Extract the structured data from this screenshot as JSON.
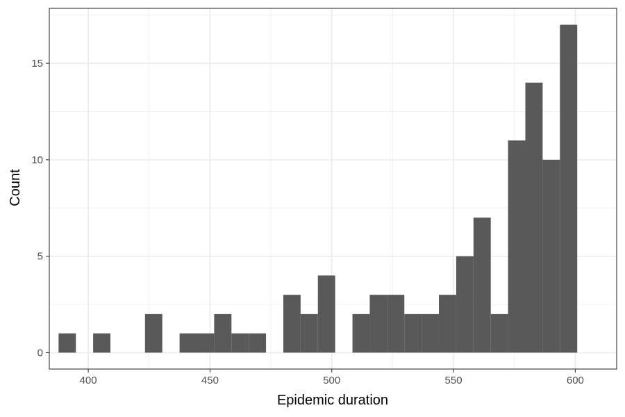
{
  "chart_data": {
    "type": "histogram",
    "xlabel": "Epidemic duration",
    "ylabel": "Count",
    "xlim": [
      384,
      617
    ],
    "ylim": [
      -0.85,
      17.85
    ],
    "x_ticks": [
      400,
      450,
      500,
      550,
      600
    ],
    "y_ticks": [
      0,
      5,
      10,
      15
    ],
    "bin_width": 7.1,
    "bins": [
      {
        "x_start": 387.8,
        "x_end": 394.9,
        "count": 1
      },
      {
        "x_start": 394.9,
        "x_end": 402.0,
        "count": 0
      },
      {
        "x_start": 402.0,
        "x_end": 409.1,
        "count": 1
      },
      {
        "x_start": 409.1,
        "x_end": 416.2,
        "count": 0
      },
      {
        "x_start": 416.2,
        "x_end": 423.3,
        "count": 0
      },
      {
        "x_start": 423.3,
        "x_end": 430.4,
        "count": 2
      },
      {
        "x_start": 430.4,
        "x_end": 437.5,
        "count": 0
      },
      {
        "x_start": 437.5,
        "x_end": 444.6,
        "count": 1
      },
      {
        "x_start": 444.6,
        "x_end": 451.7,
        "count": 1
      },
      {
        "x_start": 451.7,
        "x_end": 458.8,
        "count": 2
      },
      {
        "x_start": 458.8,
        "x_end": 465.9,
        "count": 1
      },
      {
        "x_start": 465.9,
        "x_end": 473.0,
        "count": 1
      },
      {
        "x_start": 473.0,
        "x_end": 480.1,
        "count": 0
      },
      {
        "x_start": 480.1,
        "x_end": 487.2,
        "count": 3
      },
      {
        "x_start": 487.2,
        "x_end": 494.3,
        "count": 2
      },
      {
        "x_start": 494.3,
        "x_end": 501.4,
        "count": 4
      },
      {
        "x_start": 501.4,
        "x_end": 508.5,
        "count": 0
      },
      {
        "x_start": 508.5,
        "x_end": 515.6,
        "count": 2
      },
      {
        "x_start": 515.6,
        "x_end": 522.7,
        "count": 3
      },
      {
        "x_start": 522.7,
        "x_end": 529.8,
        "count": 3
      },
      {
        "x_start": 529.8,
        "x_end": 536.9,
        "count": 2
      },
      {
        "x_start": 536.9,
        "x_end": 544.0,
        "count": 2
      },
      {
        "x_start": 544.0,
        "x_end": 551.1,
        "count": 3
      },
      {
        "x_start": 551.1,
        "x_end": 558.2,
        "count": 5
      },
      {
        "x_start": 558.2,
        "x_end": 565.3,
        "count": 7
      },
      {
        "x_start": 565.3,
        "x_end": 572.4,
        "count": 2
      },
      {
        "x_start": 572.4,
        "x_end": 579.5,
        "count": 11
      },
      {
        "x_start": 579.5,
        "x_end": 586.6,
        "count": 14
      },
      {
        "x_start": 586.6,
        "x_end": 593.7,
        "count": 10
      },
      {
        "x_start": 593.7,
        "x_end": 600.8,
        "count": 17
      }
    ],
    "grid": true,
    "bar_color": "#595959",
    "panel_border_color": "#333333",
    "grid_color": "#ebebeb"
  }
}
